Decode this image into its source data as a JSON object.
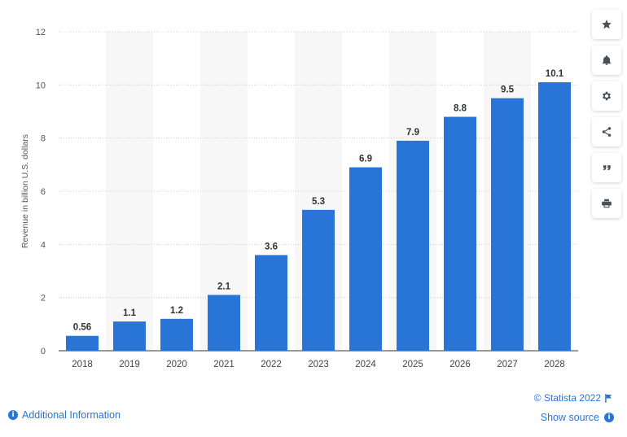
{
  "chart_data": {
    "type": "bar",
    "categories": [
      "2018",
      "2019",
      "2020",
      "2021",
      "2022",
      "2023",
      "2024",
      "2025",
      "2026",
      "2027",
      "2028"
    ],
    "values": [
      0.56,
      1.1,
      1.2,
      2.1,
      3.6,
      5.3,
      6.9,
      7.9,
      8.8,
      9.5,
      10.1
    ],
    "value_labels": [
      "0.56",
      "1.1",
      "1.2",
      "2.1",
      "3.6",
      "5.3",
      "6.9",
      "7.9",
      "8.8",
      "9.5",
      "10.1"
    ],
    "ylabel": "Revenue in billion U.S. dollars",
    "ylim": [
      0,
      12
    ],
    "yticks": [
      0,
      2,
      4,
      6,
      8,
      10,
      12
    ],
    "grid": true,
    "bar_color": "#2875d7"
  },
  "toolbar": {
    "items": [
      {
        "name": "star-icon"
      },
      {
        "name": "bell-icon"
      },
      {
        "name": "gear-icon"
      },
      {
        "name": "share-icon"
      },
      {
        "name": "quote-icon"
      },
      {
        "name": "print-icon"
      }
    ]
  },
  "footer": {
    "additional_info": "Additional Information",
    "credit": "© Statista 2022",
    "show_source": "Show source"
  },
  "colors": {
    "accent": "#2875d7",
    "band": "#f7f7f7",
    "grid": "#cccccc"
  }
}
